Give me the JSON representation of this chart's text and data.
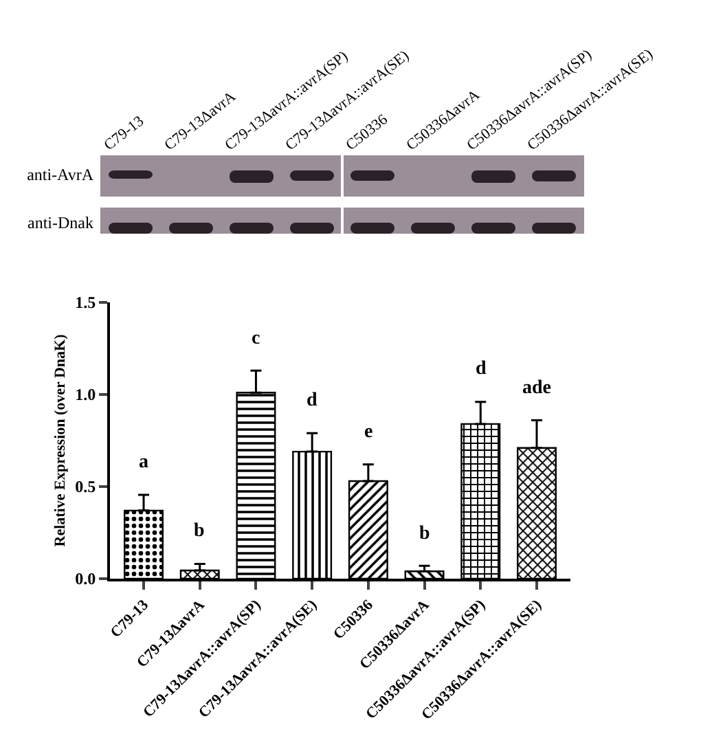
{
  "chart_data": {
    "type": "bar",
    "ylabel": "Relative Expression (over DnaK)",
    "categories": [
      "C79-13",
      "C79-13ΔavrA",
      "C79-13ΔavrA::avrA(SP)",
      "C79-13ΔavrA::avrA(SE)",
      "C50336",
      "C50336ΔavrA",
      "C50336ΔavrA::avrA(SP)",
      "C50336ΔavrA::avrA(SE)"
    ],
    "values": [
      0.37,
      0.045,
      1.01,
      0.69,
      0.53,
      0.04,
      0.84,
      0.71
    ],
    "errors": [
      [
        0.37,
        0.455
      ],
      [
        0.045,
        0.08
      ],
      [
        1.01,
        1.13
      ],
      [
        0.69,
        0.79
      ],
      [
        0.53,
        0.62
      ],
      [
        0.04,
        0.07
      ],
      [
        0.84,
        0.96
      ],
      [
        0.71,
        0.86
      ]
    ],
    "color": "#000000",
    "ylim": [
      0,
      1.5
    ],
    "yticks": [
      {
        "value": 0,
        "label": "0.0"
      },
      0.5,
      {
        "value": 1,
        "label": "1.0"
      },
      1.5
    ],
    "grid": false,
    "annotations": [
      "anti-AvrA",
      "anti-Dnak",
      "a",
      "b",
      "c",
      "d",
      "e",
      "b",
      "d",
      "ade"
    ]
  }
}
